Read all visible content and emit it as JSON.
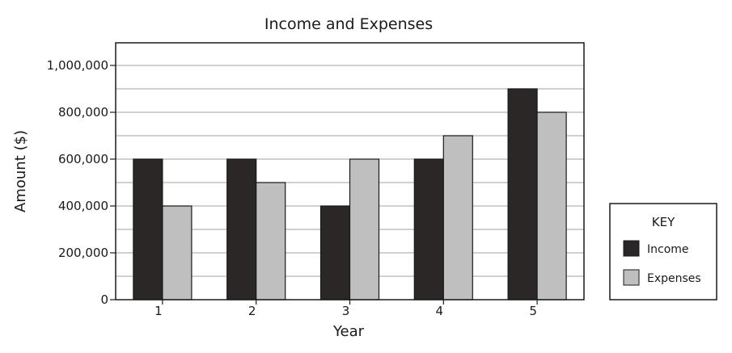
{
  "chart_data": {
    "type": "bar",
    "title": "Income and Expenses",
    "xlabel": "Year",
    "ylabel": "Amount ($)",
    "categories": [
      "1",
      "2",
      "3",
      "4",
      "5"
    ],
    "series": [
      {
        "name": "Income",
        "values": [
          600000,
          600000,
          400000,
          600000,
          900000
        ],
        "color": "#2b2726"
      },
      {
        "name": "Expenses",
        "values": [
          400000,
          500000,
          600000,
          700000,
          800000
        ],
        "color": "#bfbfbf"
      }
    ],
    "ylim": [
      0,
      1000000
    ],
    "yticks": [
      {
        "value": 0,
        "label": "0"
      },
      {
        "value": 200000,
        "label": "200,000"
      },
      {
        "value": 400000,
        "label": "400,000"
      },
      {
        "value": 600000,
        "label": "600,000"
      },
      {
        "value": 800000,
        "label": "800,000"
      },
      {
        "value": 1000000,
        "label": "1,000,000"
      }
    ],
    "minor_gridlines_every": 100000,
    "grid": true,
    "legend": {
      "title": "KEY",
      "placement": "right"
    }
  }
}
